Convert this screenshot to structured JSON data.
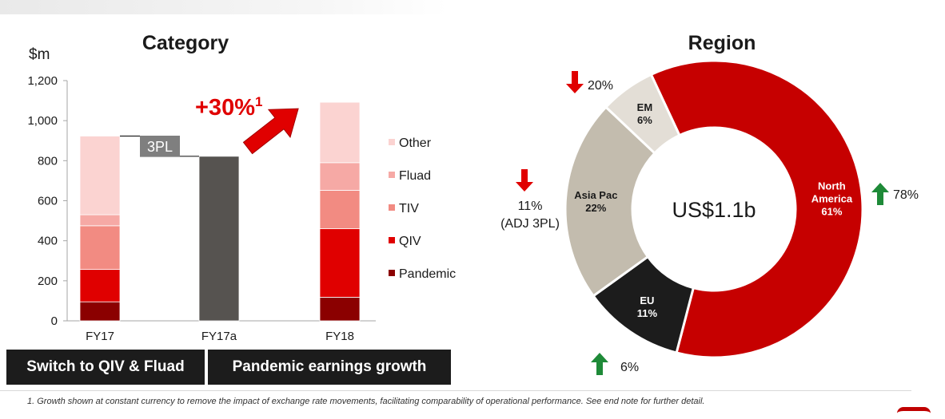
{
  "colors": {
    "pandemic": "#8b0000",
    "qiv": "#e00000",
    "tiv": "#f28b82",
    "fluad": "#f6a9a5",
    "other": "#fbd3d1",
    "fy17a": "#565350",
    "north_america": "#c60000",
    "eu": "#1c1c1c",
    "asia_pac": "#c3bcae",
    "em": "#e3ded6",
    "arrow_red": "#e00000",
    "arrow_green": "#1e8a38"
  },
  "chart_data": [
    {
      "type": "bar",
      "stacked": true,
      "title": "Category",
      "ylabel": "$m",
      "ylim": [
        0,
        1200
      ],
      "yticks": [
        "0",
        "200",
        "400",
        "600",
        "800",
        "1,000",
        "1,200"
      ],
      "categories": [
        "FY17",
        "FY17a",
        "FY18"
      ],
      "series": [
        {
          "name": "Pandemic",
          "values": [
            95,
            0,
            118
          ]
        },
        {
          "name": "QIV",
          "values": [
            162,
            0,
            342
          ]
        },
        {
          "name": "TIV",
          "values": [
            218,
            0,
            192
          ]
        },
        {
          "name": "Fluad",
          "values": [
            55,
            0,
            138
          ]
        },
        {
          "name": "Other",
          "values": [
            393,
            0,
            302
          ]
        },
        {
          "name": "",
          "values": [
            0,
            822,
            0
          ]
        }
      ],
      "legend": [
        "Other",
        "Fluad",
        "TIV",
        "QIV",
        "Pandemic"
      ],
      "legend_position": "right",
      "annotations": {
        "bridge_label": "3PL",
        "growth_label": "+30%",
        "growth_superscript": "1"
      }
    },
    {
      "type": "pie",
      "donut": true,
      "title": "Region",
      "center_label": "US$1.1b",
      "slices": [
        {
          "name": "North America",
          "name_lines": [
            "North",
            "America"
          ],
          "pct_label": "61%",
          "value": 61,
          "change": "78%",
          "direction": "up"
        },
        {
          "name": "EU",
          "name_lines": [
            "EU"
          ],
          "pct_label": "11%",
          "value": 11,
          "change": "6%",
          "direction": "up"
        },
        {
          "name": "Asia Pac",
          "name_lines": [
            "Asia Pac"
          ],
          "pct_label": "22%",
          "value": 22,
          "change": "11%",
          "change_note": "(ADJ 3PL)",
          "direction": "down"
        },
        {
          "name": "EM",
          "name_lines": [
            "EM"
          ],
          "pct_label": "6%",
          "value": 6,
          "change": "20%",
          "direction": "down"
        }
      ]
    }
  ],
  "banners": {
    "left": "Switch to QIV & Fluad",
    "right": "Pandemic earnings growth"
  },
  "footnote": "1. Growth shown at constant currency to remove the impact of exchange rate movements, facilitating comparability of operational performance. See end note for further detail."
}
